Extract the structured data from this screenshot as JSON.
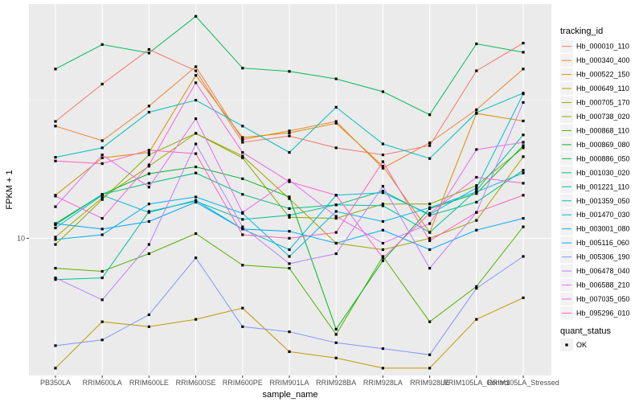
{
  "chart_data": {
    "type": "line",
    "title": "",
    "xlabel": "sample_name",
    "ylabel": "FPKM + 1",
    "y_scale": "log10",
    "ylim": [
      3.2,
      70
    ],
    "y_ticks": [
      {
        "value": 10,
        "label": "10"
      }
    ],
    "grid": true,
    "legend_position": "right",
    "categories": [
      "PB350LA",
      "RRIM600LA",
      "RRIM600LE",
      "RRIM600SE",
      "RRIM600PE",
      "RRIM901LA",
      "RRIM928BA",
      "RRIM928LA",
      "RRIM928LE",
      "RRIM105LA_Control",
      "RRIM105LA_Stressed"
    ],
    "series": [
      {
        "name": "Hb_000010_110",
        "color": "#F8766D",
        "values": [
          26.4,
          36.0,
          48.0,
          40.2,
          22.2,
          23.4,
          21.2,
          20.0,
          21.6,
          40.2,
          50.6
        ]
      },
      {
        "name": "Hb_000340_400",
        "color": "#EB8335",
        "values": [
          25.4,
          22.5,
          30.0,
          41.6,
          22.7,
          24.4,
          26.4,
          17.9,
          22.1,
          29.1,
          40.8
        ]
      },
      {
        "name": "Hb_000522_150",
        "color": "#DA8F00",
        "values": [
          14.3,
          19.5,
          20.4,
          38.7,
          23.1,
          24.0,
          26.0,
          18.2,
          10.5,
          28.2,
          26.5
        ]
      },
      {
        "name": "Hb_000649_110",
        "color": "#C49A00",
        "values": [
          3.4,
          5.0,
          4.8,
          5.1,
          5.6,
          3.9,
          3.7,
          3.4,
          3.4,
          5.1,
          6.1
        ]
      },
      {
        "name": "Hb_000705_170",
        "color": "#A9A400",
        "values": [
          10.1,
          14.0,
          18.2,
          23.9,
          19.8,
          13.9,
          9.6,
          9.1,
          10.0,
          11.6,
          19.7
        ]
      },
      {
        "name": "Hb_000738_020",
        "color": "#86AC00",
        "values": [
          9.5,
          13.8,
          20.0,
          23.9,
          19.5,
          11.9,
          11.8,
          13.3,
          13.3,
          15.5,
          21.2
        ]
      },
      {
        "name": "Hb_000868_110",
        "color": "#53B400",
        "values": [
          7.8,
          7.6,
          8.8,
          10.4,
          8.0,
          7.8,
          4.5,
          8.6,
          5.0,
          6.7,
          11.0
        ]
      },
      {
        "name": "Hb_000869_080",
        "color": "#00B81E",
        "values": [
          11.3,
          14.4,
          17.1,
          18.1,
          16.4,
          14.1,
          4.7,
          8.3,
          12.8,
          14.5,
          21.6
        ]
      },
      {
        "name": "Hb_000886_050",
        "color": "#00BC56",
        "values": [
          40.8,
          50.0,
          46.6,
          63.2,
          41.1,
          40.0,
          37.6,
          33.8,
          27.9,
          50.3,
          46.9
        ]
      },
      {
        "name": "Hb_001030_020",
        "color": "#00BF7D",
        "values": [
          11.2,
          14.4,
          15.8,
          17.2,
          14.4,
          12.8,
          13.2,
          14.8,
          12.1,
          13.5,
          17.6
        ]
      },
      {
        "name": "Hb_001221_110",
        "color": "#00C09F",
        "values": [
          7.1,
          7.2,
          12.5,
          13.6,
          11.7,
          12.1,
          13.2,
          13.1,
          10.5,
          14.9,
          23.6
        ]
      },
      {
        "name": "Hb_001359_050",
        "color": "#00BFBE",
        "values": [
          19.6,
          21.2,
          28.5,
          31.5,
          25.4,
          20.4,
          29.7,
          21.9,
          19.4,
          28.4,
          33.4
        ]
      },
      {
        "name": "Hb_001470_030",
        "color": "#00BCD8",
        "values": [
          10.9,
          14.3,
          12.4,
          13.7,
          10.8,
          9.1,
          14.3,
          14.6,
          12.2,
          15.2,
          33.2
        ]
      },
      {
        "name": "Hb_003001_080",
        "color": "#00B4EF",
        "values": [
          9.9,
          10.3,
          13.3,
          14.1,
          12.3,
          8.6,
          12.5,
          11.5,
          12.9,
          14.7,
          17.2
        ]
      },
      {
        "name": "Hb_005116_060",
        "color": "#00A7FF",
        "values": [
          11.3,
          10.8,
          11.5,
          13.5,
          10.8,
          10.6,
          9.6,
          10.7,
          9.1,
          10.7,
          11.8
        ]
      },
      {
        "name": "Hb_005306_190",
        "color": "#7F96FF",
        "values": [
          4.1,
          4.3,
          5.3,
          8.5,
          4.8,
          4.6,
          4.2,
          4.0,
          3.8,
          6.6,
          8.6
        ]
      },
      {
        "name": "Hb_006478_040",
        "color": "#BC81FF",
        "values": [
          7.2,
          6.0,
          9.5,
          21.9,
          11.0,
          8.1,
          8.8,
          15.4,
          7.8,
          12.4,
          30.9
        ]
      },
      {
        "name": "Hb_006588_210",
        "color": "#E26EF7",
        "values": [
          13.0,
          20.0,
          15.3,
          27.0,
          12.4,
          16.2,
          12.0,
          9.6,
          11.3,
          20.9,
          22.2
        ]
      },
      {
        "name": "Hb_007035_050",
        "color": "#F863DF",
        "values": [
          14.2,
          11.8,
          18.4,
          36.4,
          20.4,
          16.0,
          14.3,
          8.5,
          12.3,
          16.6,
          15.8
        ]
      },
      {
        "name": "Hb_095296_010",
        "color": "#FF62BC",
        "values": [
          19.0,
          18.6,
          20.8,
          20.2,
          10.3,
          10.0,
          10.5,
          18.9,
          9.8,
          12.4,
          14.3
        ]
      }
    ],
    "legend": {
      "series_title": "tracking_id",
      "shape_title": "quant_status",
      "shape_items": [
        "OK"
      ]
    }
  }
}
